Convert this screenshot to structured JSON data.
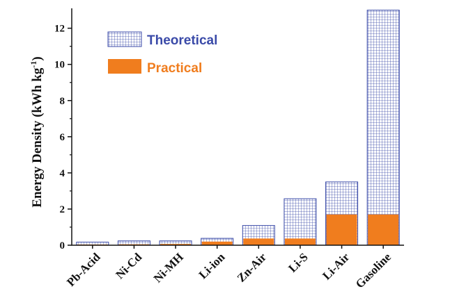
{
  "chart_data": {
    "type": "bar",
    "categories": [
      "Pb-Acid",
      "Ni-Cd",
      "Ni-MH",
      "Li-ion",
      "Zn-Air",
      "Li-S",
      "Li-Air",
      "Gasoline"
    ],
    "series": [
      {
        "name": "Theoretical",
        "values": [
          0.17,
          0.24,
          0.24,
          0.38,
          1.09,
          2.57,
          3.5,
          13.0
        ],
        "color": "#3a4aa8",
        "fill": "grid"
      },
      {
        "name": "Practical",
        "values": [
          0.04,
          0.05,
          0.07,
          0.2,
          0.37,
          0.37,
          1.7,
          1.7
        ],
        "color": "#f07d1e",
        "fill": "solid"
      }
    ],
    "title": "",
    "xlabel": "",
    "ylabel_main": "Energy Density (kWh kg",
    "ylabel_sup": "-1",
    "ylabel_close": ")",
    "ylim": [
      0,
      13.1
    ],
    "yticks": [
      0,
      2,
      4,
      6,
      8,
      10,
      12
    ],
    "grid": false,
    "legend": "top-left",
    "legend_colors": {
      "Theoretical": "#3a4aa8",
      "Practical": "#f07d1e"
    }
  }
}
